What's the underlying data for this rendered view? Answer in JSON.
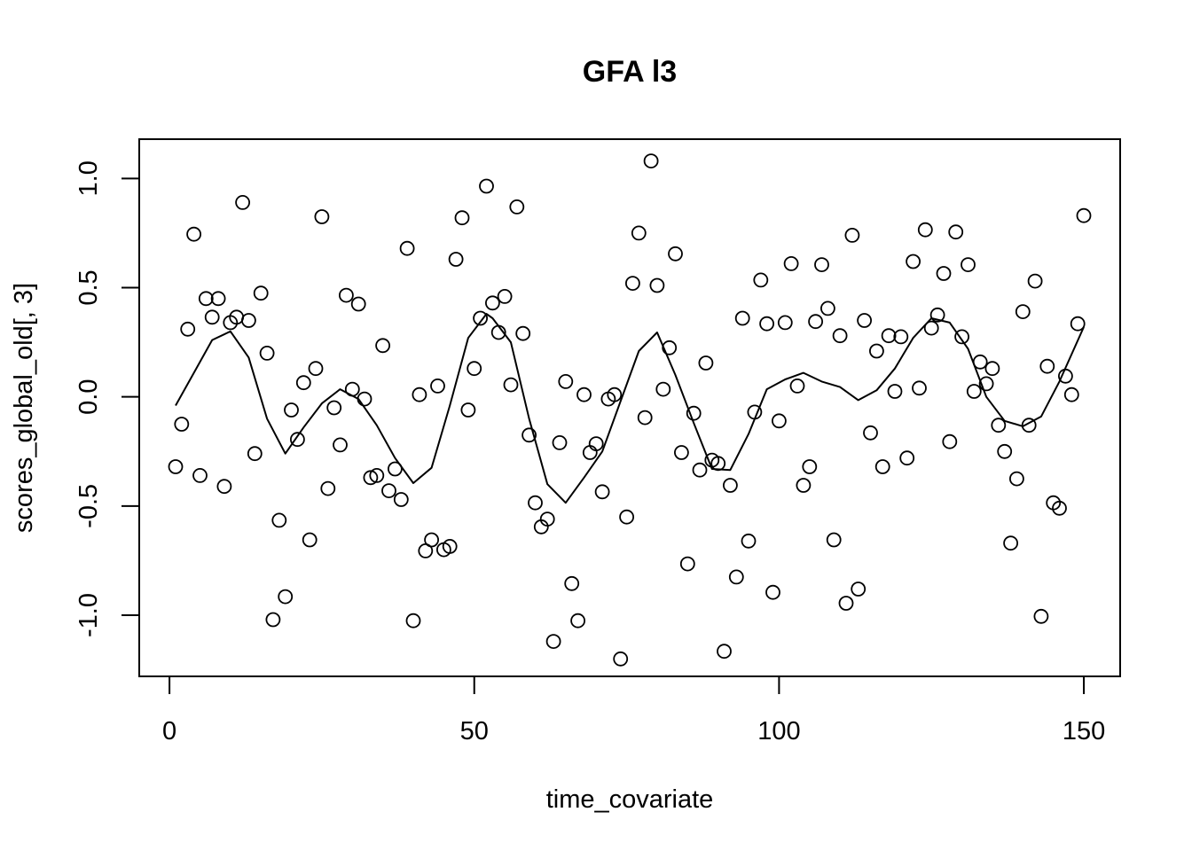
{
  "chart_data": {
    "type": "scatter",
    "title": "GFA l3",
    "xlabel": "time_covariate",
    "ylabel": "scores_global_old[, 3]",
    "xlim": [
      -4.96,
      155.96
    ],
    "ylim": [
      -1.28,
      1.18
    ],
    "xticks": [
      0,
      50,
      100,
      150
    ],
    "yticks": [
      -1.0,
      -0.5,
      0.0,
      0.5,
      1.0
    ],
    "xtick_labels": [
      "0",
      "50",
      "100",
      "150"
    ],
    "ytick_labels": [
      "-1.0",
      "-0.5",
      "0.0",
      "0.5",
      "1.0"
    ],
    "grid": false,
    "legend": "none",
    "series": [
      {
        "type": "scatter",
        "x": [
          1,
          2,
          3,
          4,
          5,
          6,
          7,
          8,
          9,
          10,
          11,
          12,
          13,
          14,
          15,
          16,
          17,
          18,
          19,
          20,
          21,
          22,
          23,
          24,
          25,
          26,
          27,
          28,
          29,
          30,
          31,
          32,
          33,
          34,
          35,
          36,
          37,
          38,
          39,
          40,
          41,
          42,
          43,
          44,
          45,
          46,
          47,
          48,
          49,
          50,
          51,
          52,
          53,
          54,
          55,
          56,
          57,
          58,
          59,
          60,
          61,
          62,
          63,
          64,
          65,
          66,
          67,
          68,
          69,
          70,
          71,
          72,
          73,
          74,
          75,
          76,
          77,
          78,
          79,
          80,
          81,
          82,
          83,
          84,
          85,
          86,
          87,
          88,
          89,
          90,
          91,
          92,
          93,
          94,
          95,
          96,
          97,
          98,
          99,
          100,
          101,
          102,
          103,
          104,
          105,
          106,
          107,
          108,
          109,
          110,
          111,
          112,
          113,
          114,
          115,
          116,
          117,
          118,
          119,
          120,
          121,
          122,
          123,
          124,
          125,
          126,
          127,
          128,
          129,
          130,
          131,
          132,
          133,
          134,
          135,
          136,
          137,
          138,
          139,
          140,
          141,
          142,
          143,
          144,
          145,
          146,
          147,
          148,
          149,
          150
        ],
        "y": [
          -0.32,
          -0.125,
          0.31,
          0.745,
          -0.36,
          0.45,
          0.365,
          0.45,
          -0.41,
          0.34,
          0.365,
          0.89,
          0.35,
          -0.26,
          0.475,
          0.2,
          -1.02,
          -0.565,
          -0.915,
          -0.06,
          -0.195,
          0.065,
          -0.655,
          0.13,
          0.825,
          -0.42,
          -0.05,
          -0.22,
          0.465,
          0.035,
          0.425,
          -0.01,
          -0.37,
          -0.36,
          0.235,
          -0.43,
          -0.33,
          -0.47,
          0.68,
          -1.025,
          0.01,
          -0.705,
          -0.655,
          0.05,
          -0.7,
          -0.685,
          0.63,
          0.82,
          -0.06,
          0.13,
          0.36,
          0.965,
          0.43,
          0.295,
          0.46,
          0.055,
          0.87,
          0.29,
          -0.175,
          -0.485,
          -0.595,
          -0.56,
          -1.12,
          -0.21,
          0.07,
          -0.855,
          -1.025,
          0.01,
          -0.255,
          -0.215,
          -0.435,
          -0.01,
          0.01,
          -1.2,
          -0.55,
          0.52,
          0.75,
          -0.095,
          1.08,
          0.51,
          0.035,
          0.225,
          0.655,
          -0.255,
          -0.765,
          -0.075,
          -0.335,
          0.155,
          -0.29,
          -0.305,
          -1.165,
          -0.405,
          -0.825,
          0.36,
          -0.66,
          -0.07,
          0.535,
          0.335,
          -0.895,
          -0.11,
          0.34,
          0.61,
          0.05,
          -0.405,
          -0.32,
          0.345,
          0.605,
          0.405,
          -0.655,
          0.28,
          -0.945,
          0.74,
          -0.88,
          0.35,
          -0.165,
          0.21,
          -0.32,
          0.28,
          0.025,
          0.275,
          -0.28,
          0.62,
          0.04,
          0.765,
          0.315,
          0.375,
          0.565,
          -0.205,
          0.755,
          0.275,
          0.605,
          0.025,
          0.16,
          0.06,
          0.13,
          -0.13,
          -0.25,
          -0.67,
          -0.375,
          0.39,
          -0.13,
          0.53,
          -1.005,
          0.14,
          -0.485,
          -0.51,
          0.095,
          0.01,
          0.335,
          0.83
        ]
      },
      {
        "type": "line",
        "x": [
          1,
          4,
          7,
          10,
          13,
          16,
          19,
          22,
          25,
          28,
          31,
          34,
          37,
          40,
          43,
          46,
          49,
          52,
          53,
          56,
          59,
          62,
          65,
          68,
          71,
          74,
          77,
          80,
          83,
          86,
          89,
          92,
          95,
          98,
          101,
          104,
          107,
          110,
          113,
          116,
          119,
          122,
          125,
          128,
          131,
          134,
          137,
          140,
          143,
          146,
          150
        ],
        "y": [
          -0.04,
          0.11,
          0.26,
          0.3,
          0.18,
          -0.1,
          -0.26,
          -0.14,
          -0.03,
          0.035,
          -0.01,
          -0.13,
          -0.28,
          -0.395,
          -0.325,
          -0.04,
          0.27,
          0.38,
          0.36,
          0.25,
          -0.1,
          -0.4,
          -0.485,
          -0.37,
          -0.25,
          -0.02,
          0.21,
          0.295,
          0.1,
          -0.12,
          -0.33,
          -0.335,
          -0.17,
          0.035,
          0.08,
          0.11,
          0.07,
          0.045,
          -0.015,
          0.03,
          0.13,
          0.27,
          0.36,
          0.34,
          0.22,
          0,
          -0.11,
          -0.135,
          -0.09,
          0.07,
          0.32
        ]
      }
    ]
  }
}
